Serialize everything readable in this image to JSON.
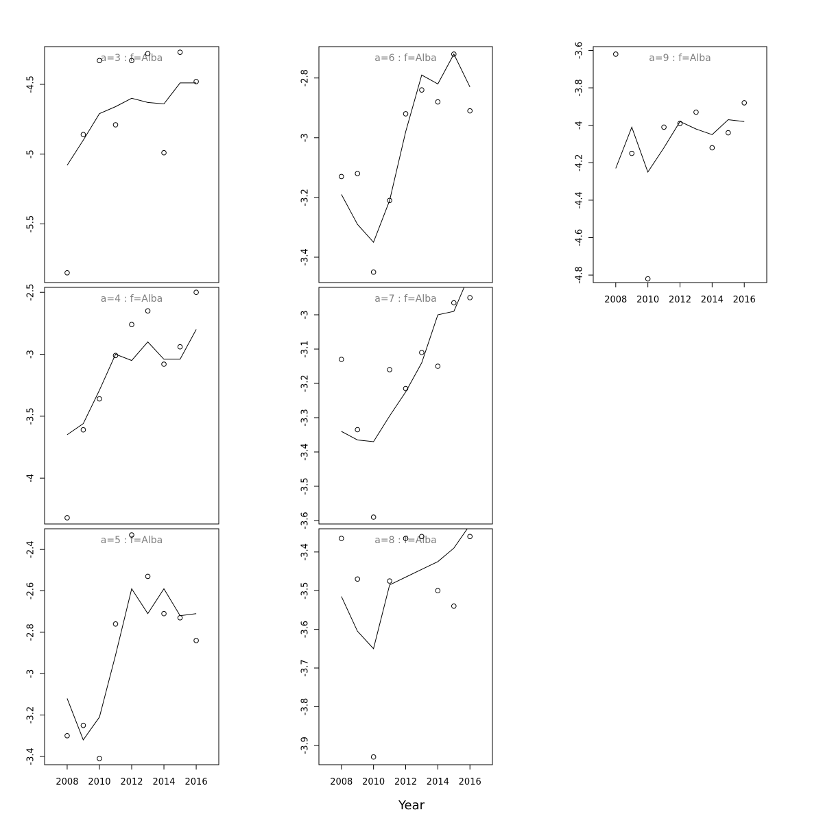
{
  "figure": {
    "xlabel": "Year"
  },
  "chart_data": [
    {
      "type": "scatter",
      "title": "a=3 : f=Alba",
      "x": [
        2008,
        2009,
        2010,
        2011,
        2012,
        2013,
        2014,
        2015,
        2016
      ],
      "series": [
        {
          "style": "points",
          "values": [
            -5.85,
            -4.86,
            -4.33,
            -4.79,
            -4.33,
            -4.28,
            -4.99,
            -4.27,
            -4.48
          ]
        },
        {
          "style": "line",
          "values": [
            -5.08,
            -4.9,
            -4.71,
            -4.66,
            -4.6,
            -4.63,
            -4.64,
            -4.49,
            -4.49
          ]
        }
      ],
      "xlim": [
        2006.6,
        2017.4
      ],
      "ylim": [
        -5.92,
        -4.23
      ],
      "yticks": [
        -4.5,
        -5.0,
        -5.5
      ],
      "xticks": [],
      "ylabel": "",
      "xlabel": "",
      "grid": false,
      "legend": "none"
    },
    {
      "type": "scatter",
      "title": "a=4 : f=Alba",
      "x": [
        2008,
        2009,
        2010,
        2011,
        2012,
        2013,
        2014,
        2015,
        2016
      ],
      "series": [
        {
          "style": "points",
          "values": [
            -4.32,
            -3.61,
            -3.36,
            -3.01,
            -2.76,
            -2.65,
            -3.08,
            -2.94,
            -2.5
          ]
        },
        {
          "style": "line",
          "values": [
            -3.65,
            -3.56,
            -3.29,
            -3.0,
            -3.05,
            -2.9,
            -3.04,
            -3.04,
            -2.8
          ]
        }
      ],
      "xlim": [
        2006.6,
        2017.4
      ],
      "ylim": [
        -4.37,
        -2.46
      ],
      "yticks": [
        -2.5,
        -3.0,
        -3.5,
        -4.0
      ],
      "xticks": [],
      "ylabel": "",
      "xlabel": "",
      "grid": false,
      "legend": "none"
    },
    {
      "type": "scatter",
      "title": "a=5 : f=Alba",
      "x": [
        2008,
        2009,
        2010,
        2011,
        2012,
        2013,
        2014,
        2015,
        2016
      ],
      "series": [
        {
          "style": "points",
          "values": [
            -3.3,
            -3.25,
            -3.41,
            -2.76,
            -2.33,
            -2.53,
            -2.71,
            -2.73,
            -2.84
          ]
        },
        {
          "style": "line",
          "values": [
            -3.12,
            -3.32,
            -3.21,
            -2.91,
            -2.59,
            -2.71,
            -2.59,
            -2.72,
            -2.71
          ]
        }
      ],
      "xlim": [
        2006.6,
        2017.4
      ],
      "ylim": [
        -3.44,
        -2.3
      ],
      "yticks": [
        -2.4,
        -2.6,
        -2.8,
        -3.0,
        -3.2,
        -3.4
      ],
      "xticks": [
        2008,
        2010,
        2012,
        2014,
        2016
      ],
      "ylabel": "",
      "xlabel": "",
      "grid": false,
      "legend": "none"
    },
    {
      "type": "scatter",
      "title": "a=6 : f=Alba",
      "x": [
        2008,
        2009,
        2010,
        2011,
        2012,
        2013,
        2014,
        2015,
        2016
      ],
      "series": [
        {
          "style": "points",
          "values": [
            -3.13,
            -3.12,
            -3.45,
            -3.21,
            -2.92,
            -2.84,
            -2.88,
            -2.72,
            -2.91
          ]
        },
        {
          "style": "line",
          "values": [
            -3.19,
            -3.29,
            -3.35,
            -3.21,
            -2.98,
            -2.79,
            -2.82,
            -2.72,
            -2.83
          ]
        }
      ],
      "xlim": [
        2006.6,
        2017.4
      ],
      "ylim": [
        -3.485,
        -2.695
      ],
      "yticks": [
        -2.8,
        -3.0,
        -3.2,
        -3.4
      ],
      "xticks": [],
      "ylabel": "",
      "xlabel": "",
      "grid": false,
      "legend": "none"
    },
    {
      "type": "scatter",
      "title": "a=7 : f=Alba",
      "x": [
        2008,
        2009,
        2010,
        2011,
        2012,
        2013,
        2014,
        2015,
        2016
      ],
      "series": [
        {
          "style": "points",
          "values": [
            -3.13,
            -3.335,
            -3.59,
            -3.16,
            -3.215,
            -3.11,
            -3.15,
            -2.965,
            -2.95
          ]
        },
        {
          "style": "line",
          "values": [
            -3.34,
            -3.365,
            -3.37,
            -3.295,
            -3.225,
            -3.14,
            -3.0,
            -2.99,
            -2.88
          ]
        }
      ],
      "xlim": [
        2006.6,
        2017.4
      ],
      "ylim": [
        -3.61,
        -2.92
      ],
      "yticks": [
        -3.0,
        -3.1,
        -3.2,
        -3.3,
        -3.4,
        -3.5,
        -3.6
      ],
      "xticks": [],
      "ylabel": "",
      "xlabel": "",
      "grid": false,
      "legend": "none"
    },
    {
      "type": "scatter",
      "title": "a=8 : f=Alba",
      "x": [
        2008,
        2009,
        2010,
        2011,
        2012,
        2013,
        2014,
        2015,
        2016
      ],
      "series": [
        {
          "style": "points",
          "values": [
            -3.365,
            -3.47,
            -3.93,
            -3.475,
            -3.365,
            -3.36,
            -3.5,
            -3.54,
            -3.36
          ]
        },
        {
          "style": "line",
          "values": [
            -3.515,
            -3.605,
            -3.65,
            -3.485,
            -3.465,
            -3.445,
            -3.425,
            -3.39,
            -3.33
          ]
        }
      ],
      "xlim": [
        2006.6,
        2017.4
      ],
      "ylim": [
        -3.95,
        -3.34
      ],
      "yticks": [
        -3.4,
        -3.5,
        -3.6,
        -3.7,
        -3.8,
        -3.9
      ],
      "xticks": [
        2008,
        2010,
        2012,
        2014,
        2016
      ],
      "ylabel": "",
      "xlabel": "",
      "grid": false,
      "legend": "none"
    },
    {
      "type": "scatter",
      "title": "a=9 : f=Alba",
      "x": [
        2008,
        2009,
        2010,
        2011,
        2012,
        2013,
        2014,
        2015,
        2016
      ],
      "series": [
        {
          "style": "points",
          "values": [
            -3.62,
            -4.15,
            -4.82,
            -4.01,
            -3.99,
            -3.93,
            -4.12,
            -4.04,
            -3.88
          ]
        },
        {
          "style": "line",
          "values": [
            -4.23,
            -4.01,
            -4.25,
            -4.12,
            -3.98,
            -4.02,
            -4.05,
            -3.97,
            -3.98
          ]
        }
      ],
      "xlim": [
        2006.6,
        2017.4
      ],
      "ylim": [
        -4.84,
        -3.58
      ],
      "yticks": [
        -3.6,
        -3.8,
        -4.0,
        -4.2,
        -4.4,
        -4.6,
        -4.8
      ],
      "xticks": [
        2008,
        2010,
        2012,
        2014,
        2016
      ],
      "ylabel": "",
      "xlabel": "",
      "grid": false,
      "legend": "none"
    }
  ]
}
